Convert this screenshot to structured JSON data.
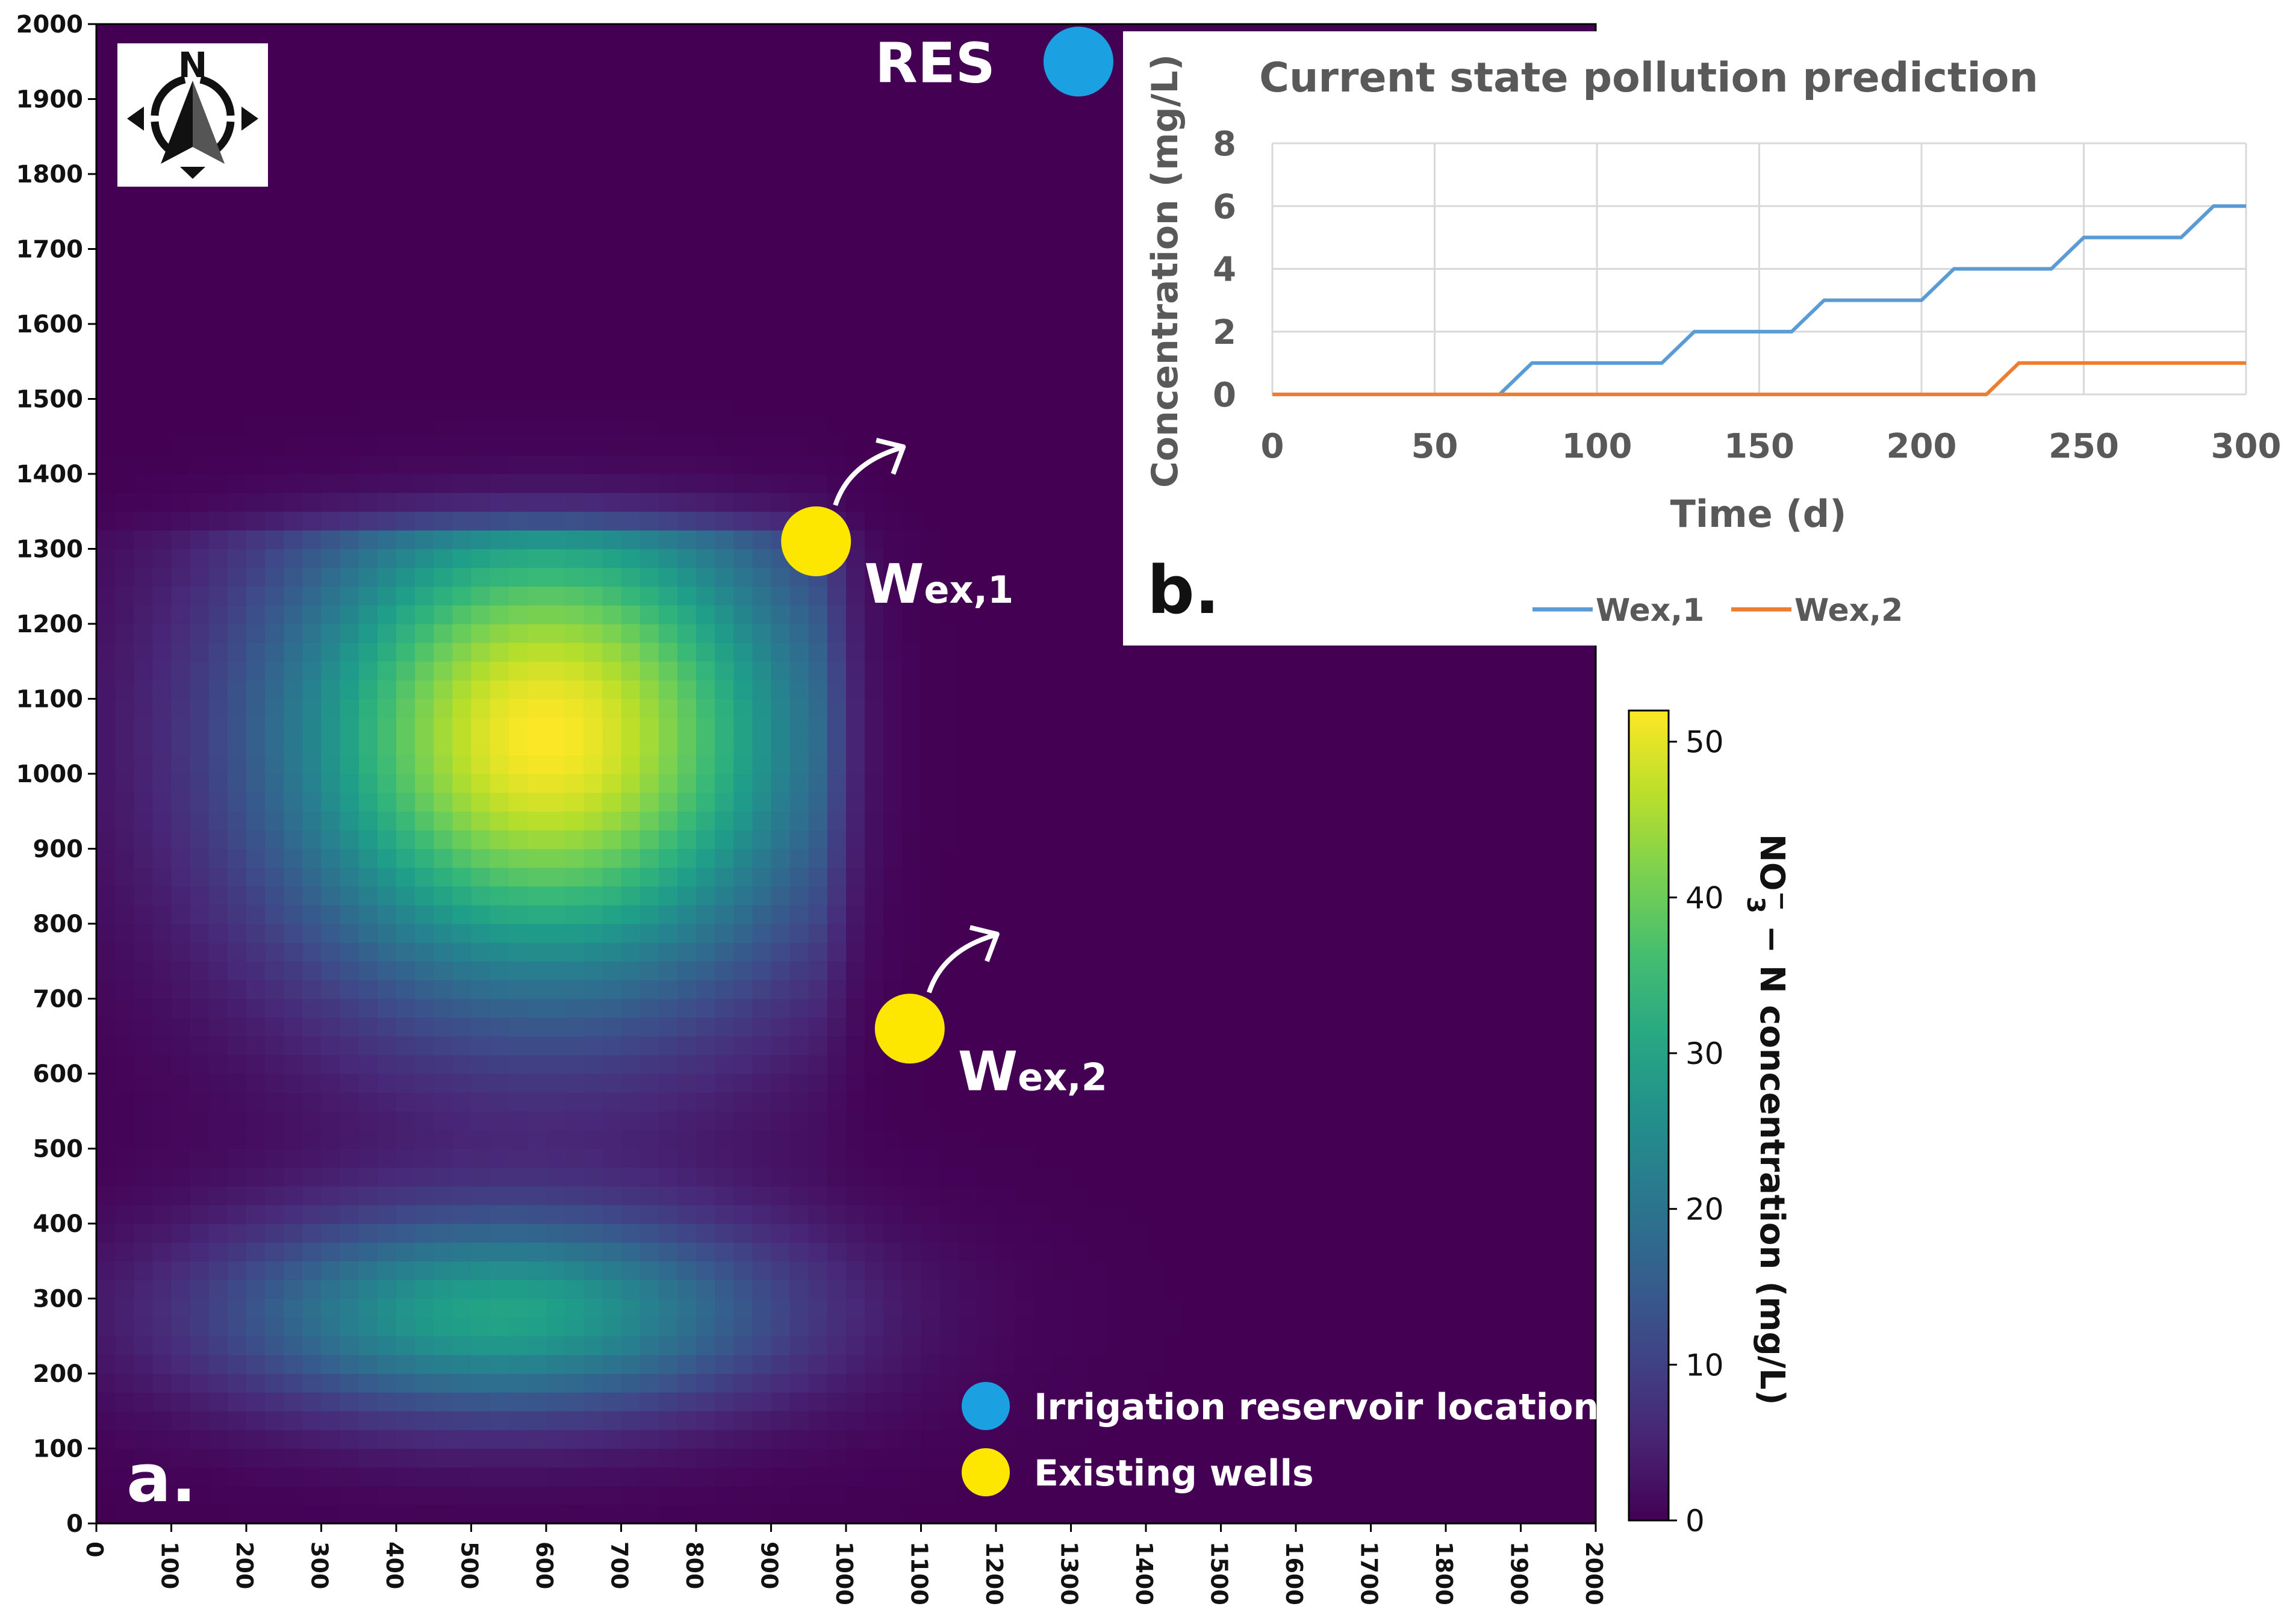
{
  "chart_data": [
    {
      "type": "heatmap",
      "panel_label": "a.",
      "xlabel": "",
      "ylabel": "",
      "xlim": [
        0,
        2000
      ],
      "ylim": [
        0,
        2000
      ],
      "x_ticks": [
        0,
        100,
        200,
        300,
        400,
        500,
        600,
        700,
        800,
        900,
        1000,
        1100,
        1200,
        1300,
        1400,
        1500,
        1600,
        1700,
        1800,
        1900,
        2000
      ],
      "y_ticks": [
        0,
        100,
        200,
        300,
        400,
        500,
        600,
        700,
        800,
        900,
        1000,
        1100,
        1200,
        1300,
        1400,
        1500,
        1600,
        1700,
        1800,
        1900,
        2000
      ],
      "grid_cell_size": 25,
      "plumes": [
        {
          "name": "upper plume",
          "center_x": 600,
          "center_y": 1050,
          "peak": 52,
          "sigma_x": 250,
          "sigma_y": 240,
          "cut_right_x": 975,
          "cut_top_y": 1310
        },
        {
          "name": "lower plume",
          "center_x": 540,
          "center_y": 280,
          "peak": 30,
          "sigma_x": 260,
          "sigma_y": 95,
          "cut_right_x": null,
          "cut_top_y": null
        }
      ],
      "colorbar": {
        "label_main": "NO",
        "label_sub": "3",
        "label_sup": "−",
        "label_rest": " − N concentration (mg/L)",
        "min": 0,
        "max": 52,
        "ticks": [
          0,
          10,
          20,
          30,
          40,
          50
        ]
      },
      "markers": [
        {
          "id": "res",
          "label": "RES",
          "x": 1310,
          "y": 1950,
          "color": "#1ba1e2"
        },
        {
          "id": "wex1",
          "label_main": "W",
          "label_sub": "ex,1",
          "x": 960,
          "y": 1310,
          "color": "#fde600"
        },
        {
          "id": "wex2",
          "label_main": "W",
          "label_sub": "ex,2",
          "x": 1085,
          "y": 660,
          "color": "#fde600"
        }
      ],
      "legend": {
        "placement": "bottom-right",
        "items": [
          {
            "label": "Irrigation reservoir location",
            "color": "#1ba1e2"
          },
          {
            "label": "Existing wells",
            "color": "#fde600"
          }
        ]
      },
      "north_arrow_label": "N"
    },
    {
      "type": "line",
      "panel_label": "b.",
      "title": "Current state pollution prediction",
      "xlabel": "Time (d)",
      "ylabel": "Concentration (mg/L)",
      "xlim": [
        0,
        300
      ],
      "ylim": [
        0,
        8
      ],
      "x_ticks": [
        0,
        50,
        100,
        150,
        200,
        250,
        300
      ],
      "y_ticks": [
        0,
        2,
        4,
        6,
        8
      ],
      "grid": true,
      "legend_placement": "bottom-center",
      "series": [
        {
          "name": "Wex,1",
          "color": "#5b9bd5",
          "x": [
            0,
            70,
            80,
            120,
            130,
            160,
            170,
            200,
            210,
            240,
            250,
            280,
            290,
            300
          ],
          "y": [
            0,
            0,
            1,
            1,
            2,
            2,
            3,
            3,
            4,
            4,
            5,
            5,
            6,
            6
          ]
        },
        {
          "name": "Wex,2",
          "color": "#ed7d31",
          "x": [
            0,
            220,
            230,
            300
          ],
          "y": [
            0,
            0,
            1,
            1
          ]
        }
      ]
    }
  ]
}
